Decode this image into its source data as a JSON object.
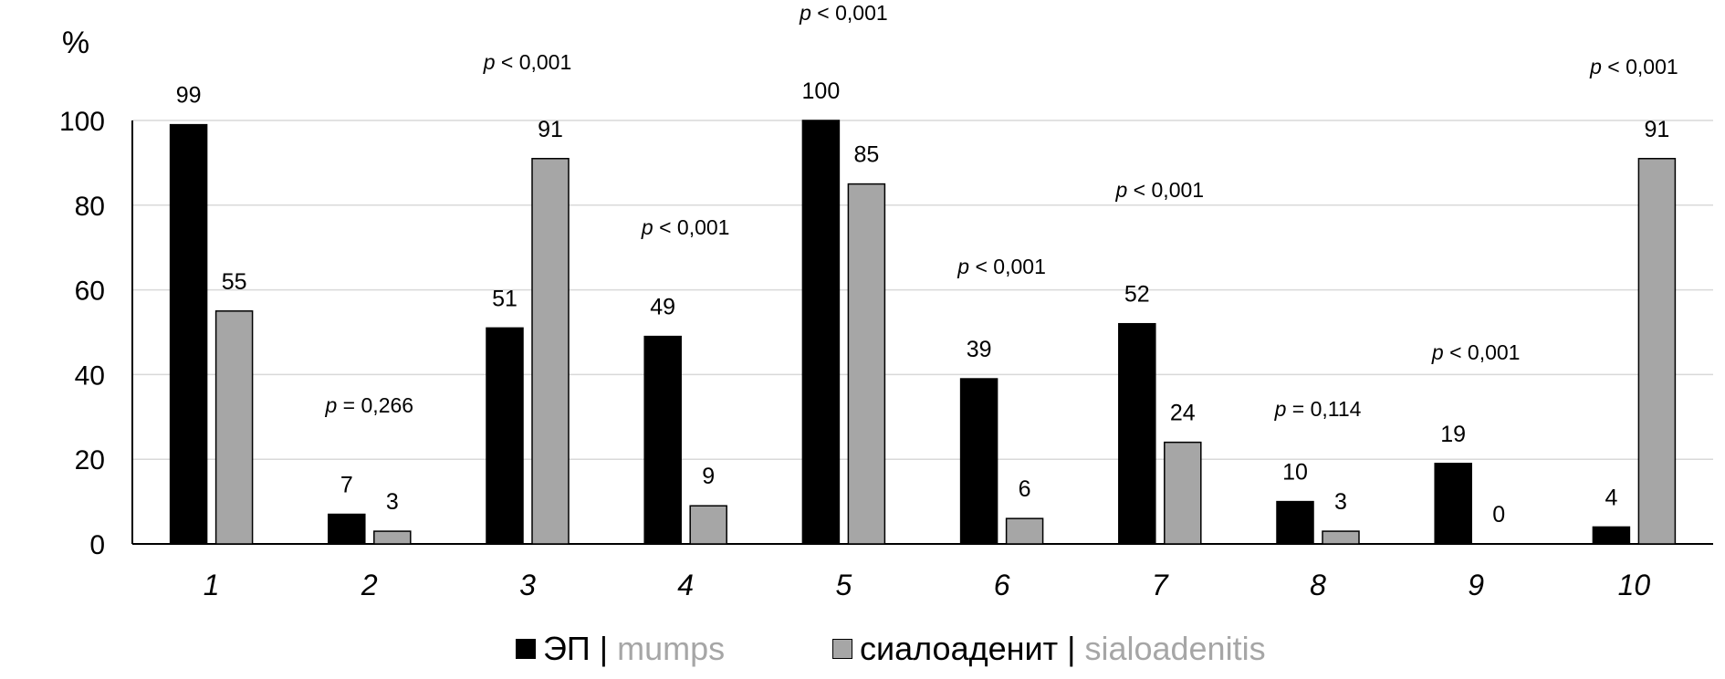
{
  "chart_data": {
    "type": "bar",
    "ylabel": "%",
    "ylim": [
      0,
      100
    ],
    "yticks": [
      0,
      20,
      40,
      60,
      80,
      100
    ],
    "grid": true,
    "categories": [
      "1",
      "2",
      "3",
      "4",
      "5",
      "6",
      "7",
      "8",
      "9",
      "10"
    ],
    "series": [
      {
        "name": "ЭП",
        "name_en": "mumps",
        "color": "#000000",
        "values": [
          99,
          7,
          51,
          49,
          100,
          39,
          52,
          10,
          19,
          4
        ]
      },
      {
        "name": "сиалоаденит",
        "name_en": "sialoadenitis",
        "color": "#a6a6a6",
        "values": [
          55,
          3,
          91,
          9,
          85,
          6,
          24,
          3,
          0,
          91
        ]
      }
    ],
    "annotations": [
      {
        "category": "2",
        "op": "=",
        "value": "0,266"
      },
      {
        "category": "3",
        "op": "<",
        "value": "0,001"
      },
      {
        "category": "4",
        "op": "<",
        "value": "0,001"
      },
      {
        "category": "5",
        "op": "<",
        "value": "0,001"
      },
      {
        "category": "6",
        "op": "<",
        "value": "0,001"
      },
      {
        "category": "7",
        "op": "<",
        "value": "0,001"
      },
      {
        "category": "8",
        "op": "=",
        "value": "0,114"
      },
      {
        "category": "9",
        "op": "<",
        "value": "0,001"
      },
      {
        "category": "10",
        "op": "<",
        "value": "0,001"
      }
    ],
    "p_symbol": "p",
    "legend": {
      "separator": "|",
      "position": "bottom"
    }
  }
}
